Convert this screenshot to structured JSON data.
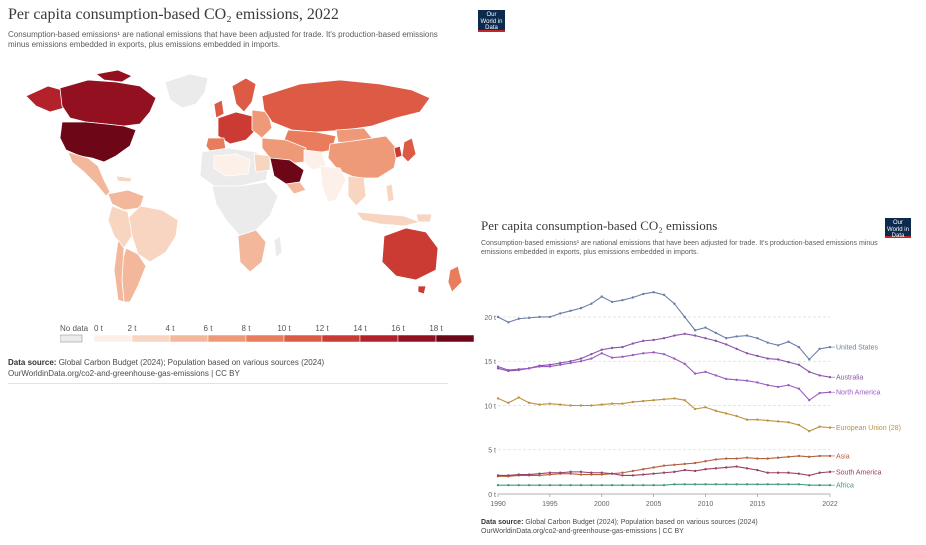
{
  "map_panel": {
    "title": "Per capita consumption-based CO₂ emissions, 2022",
    "subtitle": "Consumption-based emissions¹ are national emissions that have been adjusted for trade. It's production-based emissions minus emissions embedded in exports, plus emissions embedded in imports.",
    "logo": "Our World in Data",
    "legend": {
      "no_data": "No data",
      "bins": [
        "0 t",
        "2 t",
        "4 t",
        "6 t",
        "8 t",
        "10 t",
        "12 t",
        "14 t",
        "16 t",
        "18 t"
      ],
      "colors": [
        "#fdf0e8",
        "#f7d5c1",
        "#f3b89c",
        "#ee9a78",
        "#e87c5c",
        "#dd5a44",
        "#cb3a33",
        "#b3222b",
        "#931020",
        "#6d0617"
      ]
    },
    "source_label": "Data source:",
    "source": "Global Carbon Budget (2024); Population based on various sources (2024)",
    "url": "OurWorldinData.org/co2-and-greenhouse-gas-emissions | CC BY"
  },
  "line_panel": {
    "title": "Per capita consumption-based CO₂ emissions",
    "subtitle": "Consumption-based emissions¹ are national emissions that have been adjusted for trade. It's production-based emissions minus emissions embedded in exports, plus emissions embedded in imports.",
    "logo": "Our World in Data",
    "source_label": "Data source:",
    "source": "Global Carbon Budget (2024); Population based on various sources (2024)",
    "url": "OurWorldinData.org/co2-and-greenhouse-gas-emissions | CC BY"
  },
  "chart_data": {
    "type": "line",
    "title": "Per capita consumption-based CO₂ emissions",
    "x": [
      1990,
      1991,
      1992,
      1993,
      1994,
      1995,
      1996,
      1997,
      1998,
      1999,
      2000,
      2001,
      2002,
      2003,
      2004,
      2005,
      2006,
      2007,
      2008,
      2009,
      2010,
      2011,
      2012,
      2013,
      2014,
      2015,
      2016,
      2017,
      2018,
      2019,
      2020,
      2021,
      2022
    ],
    "xticks": [
      1990,
      1995,
      2000,
      2005,
      2010,
      2015,
      2022
    ],
    "yticks": [
      0,
      5,
      10,
      15,
      20
    ],
    "ytick_labels": [
      "0 t",
      "5 t",
      "10 t",
      "15 t",
      "20 t"
    ],
    "ylim": [
      0,
      23.5
    ],
    "grid": true,
    "series": [
      {
        "name": "United States",
        "color": "#6a7fa8",
        "values": [
          20.0,
          19.4,
          19.8,
          19.9,
          20.0,
          20.0,
          20.4,
          20.7,
          21.0,
          21.5,
          22.3,
          21.7,
          21.9,
          22.2,
          22.6,
          22.8,
          22.5,
          21.5,
          20.0,
          18.5,
          18.8,
          18.2,
          17.6,
          17.8,
          17.9,
          17.6,
          17.1,
          16.8,
          17.2,
          16.6,
          15.2,
          16.4,
          16.6
        ]
      },
      {
        "name": "Australia",
        "color": "#8a55a6",
        "values": [
          14.2,
          13.9,
          14.0,
          14.2,
          14.5,
          14.6,
          14.8,
          15.0,
          15.3,
          15.8,
          16.3,
          16.5,
          16.6,
          17.0,
          17.3,
          17.4,
          17.6,
          17.9,
          18.1,
          17.9,
          17.6,
          17.3,
          16.9,
          16.4,
          15.9,
          15.6,
          15.3,
          15.2,
          14.9,
          14.6,
          13.8,
          13.4,
          13.2
        ]
      },
      {
        "name": "North America",
        "color": "#9a5bc2",
        "values": [
          14.4,
          14.0,
          14.1,
          14.2,
          14.4,
          14.4,
          14.6,
          14.8,
          15.0,
          15.3,
          15.9,
          15.4,
          15.5,
          15.7,
          15.9,
          16.0,
          15.8,
          15.3,
          14.7,
          13.6,
          13.8,
          13.4,
          13.0,
          12.9,
          12.8,
          12.6,
          12.3,
          12.1,
          12.3,
          11.9,
          10.6,
          11.4,
          11.5
        ]
      },
      {
        "name": "European Union (28)",
        "color": "#bd913f",
        "values": [
          10.8,
          10.3,
          10.9,
          10.3,
          10.1,
          10.2,
          10.1,
          10.0,
          10.0,
          10.0,
          10.1,
          10.2,
          10.2,
          10.4,
          10.5,
          10.6,
          10.7,
          10.8,
          10.6,
          9.6,
          9.8,
          9.4,
          9.1,
          8.8,
          8.4,
          8.4,
          8.3,
          8.2,
          8.1,
          7.8,
          7.1,
          7.6,
          7.5
        ]
      },
      {
        "name": "Asia",
        "color": "#b5603f",
        "values": [
          2.0,
          2.0,
          2.1,
          2.1,
          2.1,
          2.2,
          2.3,
          2.3,
          2.2,
          2.2,
          2.2,
          2.3,
          2.4,
          2.6,
          2.8,
          3.0,
          3.2,
          3.3,
          3.4,
          3.5,
          3.7,
          3.9,
          4.0,
          4.0,
          4.1,
          4.0,
          4.0,
          4.1,
          4.2,
          4.3,
          4.2,
          4.3,
          4.3
        ]
      },
      {
        "name": "South America",
        "color": "#993e64",
        "values": [
          2.1,
          2.1,
          2.2,
          2.2,
          2.3,
          2.4,
          2.4,
          2.5,
          2.5,
          2.4,
          2.4,
          2.3,
          2.1,
          2.1,
          2.2,
          2.3,
          2.4,
          2.5,
          2.7,
          2.6,
          2.8,
          2.9,
          3.0,
          3.1,
          2.9,
          2.7,
          2.4,
          2.4,
          2.4,
          2.3,
          2.1,
          2.4,
          2.5
        ]
      },
      {
        "name": "Africa",
        "color": "#3f9a82",
        "values": [
          1.0,
          1.0,
          1.0,
          1.0,
          1.0,
          1.0,
          1.0,
          1.0,
          1.0,
          1.0,
          1.0,
          1.0,
          1.0,
          1.0,
          1.0,
          1.0,
          1.0,
          1.1,
          1.1,
          1.1,
          1.1,
          1.1,
          1.1,
          1.1,
          1.1,
          1.1,
          1.1,
          1.1,
          1.1,
          1.1,
          1.0,
          1.0,
          1.0
        ]
      }
    ]
  }
}
